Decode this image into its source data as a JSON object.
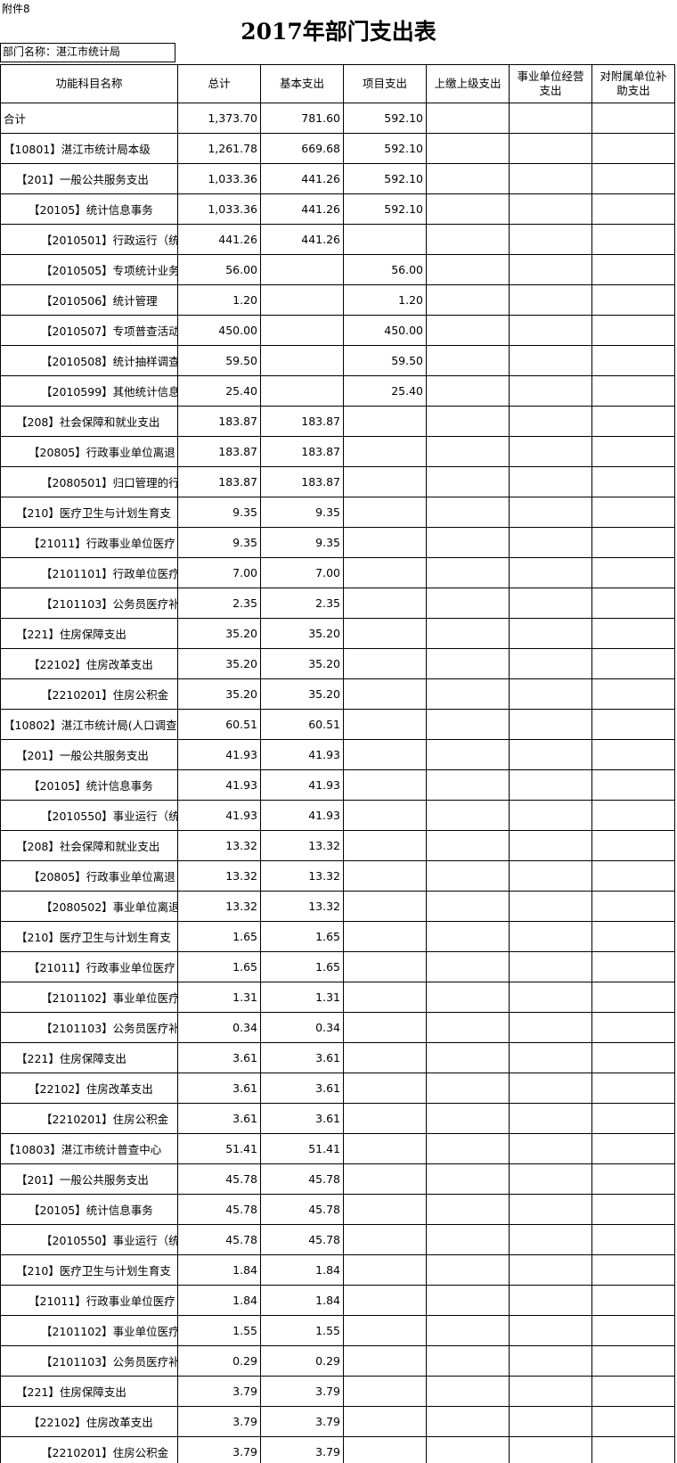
{
  "header": {
    "attachment": "附件8",
    "title": "2017年部门支出表",
    "department": "部门名称：湛江市统计局"
  },
  "columns": [
    "功能科目名称",
    "总计",
    "基本支出",
    "项目支出",
    "上缴上级支出",
    "事业单位经营支出",
    "对附属单位补助支出"
  ],
  "total": {
    "name": "合计",
    "total": "1,373.70",
    "basic": "781.60",
    "project": "592.10"
  },
  "units": [
    {
      "name": "【10801】湛江市统计局本级",
      "total": "1,261.78",
      "basic": "669.68",
      "project": "592.10",
      "rows": [
        {
          "name": "【201】一般公共服务支出",
          "total": "1,033.36",
          "basic": "441.26",
          "project": "592.10"
        },
        {
          "name": "【20105】统计信息事务",
          "total": "1,033.36",
          "basic": "441.26",
          "project": "592.10"
        },
        {
          "name": "【2010501】行政运行（统",
          "total": "441.26",
          "basic": "441.26",
          "project": null
        },
        {
          "name": "【2010505】专项统计业务",
          "total": "56.00",
          "basic": null,
          "project": "56.00"
        },
        {
          "name": "【2010506】统计管理",
          "total": "1.20",
          "basic": null,
          "project": "1.20"
        },
        {
          "name": "【2010507】专项普查活动",
          "total": "450.00",
          "basic": null,
          "project": "450.00"
        },
        {
          "name": "【2010508】统计抽样调查",
          "total": "59.50",
          "basic": null,
          "project": "59.50"
        },
        {
          "name": "【2010599】其他统计信息",
          "total": "25.40",
          "basic": null,
          "project": "25.40"
        },
        {
          "name": "【208】社会保障和就业支出",
          "total": "183.87",
          "basic": "183.87",
          "project": null
        },
        {
          "name": "【20805】行政事业单位离退",
          "total": "183.87",
          "basic": "183.87",
          "project": null
        },
        {
          "name": "【2080501】归口管理的行",
          "total": "183.87",
          "basic": "183.87",
          "project": null
        },
        {
          "name": "【210】医疗卫生与计划生育支",
          "total": "9.35",
          "basic": "9.35",
          "project": null
        },
        {
          "name": "【21011】行政事业单位医疗",
          "total": "9.35",
          "basic": "9.35",
          "project": null
        },
        {
          "name": "【2101101】行政单位医疗",
          "total": "7.00",
          "basic": "7.00",
          "project": null
        },
        {
          "name": "【2101103】公务员医疗补",
          "total": "2.35",
          "basic": "2.35",
          "project": null
        },
        {
          "name": "【221】住房保障支出",
          "total": "35.20",
          "basic": "35.20",
          "project": null
        },
        {
          "name": "【22102】住房改革支出",
          "total": "35.20",
          "basic": "35.20",
          "project": null
        },
        {
          "name": "【2210201】住房公积金",
          "total": "35.20",
          "basic": "35.20",
          "project": null
        }
      ]
    },
    {
      "name": "【10802】湛江市统计局(人口调查",
      "total": "60.51",
      "basic": "60.51",
      "project": null,
      "rows": [
        {
          "name": "【201】一般公共服务支出",
          "total": "41.93",
          "basic": "41.93",
          "project": null
        },
        {
          "name": "【20105】统计信息事务",
          "total": "41.93",
          "basic": "41.93",
          "project": null
        },
        {
          "name": "【2010550】事业运行（统",
          "total": "41.93",
          "basic": "41.93",
          "project": null
        },
        {
          "name": "【208】社会保障和就业支出",
          "total": "13.32",
          "basic": "13.32",
          "project": null
        },
        {
          "name": "【20805】行政事业单位离退",
          "total": "13.32",
          "basic": "13.32",
          "project": null
        },
        {
          "name": "【2080502】事业单位离退",
          "total": "13.32",
          "basic": "13.32",
          "project": null
        },
        {
          "name": "【210】医疗卫生与计划生育支",
          "total": "1.65",
          "basic": "1.65",
          "project": null
        },
        {
          "name": "【21011】行政事业单位医疗",
          "total": "1.65",
          "basic": "1.65",
          "project": null
        },
        {
          "name": "【2101102】事业单位医疗",
          "total": "1.31",
          "basic": "1.31",
          "project": null
        },
        {
          "name": "【2101103】公务员医疗补",
          "total": "0.34",
          "basic": "0.34",
          "project": null
        },
        {
          "name": "【221】住房保障支出",
          "total": "3.61",
          "basic": "3.61",
          "project": null
        },
        {
          "name": "【22102】住房改革支出",
          "total": "3.61",
          "basic": "3.61",
          "project": null
        },
        {
          "name": "【2210201】住房公积金",
          "total": "3.61",
          "basic": "3.61",
          "project": null
        }
      ]
    },
    {
      "name": "【10803】湛江市统计普查中心",
      "total": "51.41",
      "basic": "51.41",
      "project": null,
      "rows": [
        {
          "name": "【201】一般公共服务支出",
          "total": "45.78",
          "basic": "45.78",
          "project": null
        },
        {
          "name": "【20105】统计信息事务",
          "total": "45.78",
          "basic": "45.78",
          "project": null
        },
        {
          "name": "【2010550】事业运行（统",
          "total": "45.78",
          "basic": "45.78",
          "project": null
        },
        {
          "name": "【210】医疗卫生与计划生育支",
          "total": "1.84",
          "basic": "1.84",
          "project": null
        },
        {
          "name": "【21011】行政事业单位医疗",
          "total": "1.84",
          "basic": "1.84",
          "project": null
        },
        {
          "name": "【2101102】事业单位医疗",
          "total": "1.55",
          "basic": "1.55",
          "project": null
        },
        {
          "name": "【2101103】公务员医疗补",
          "total": "0.29",
          "basic": "0.29",
          "project": null
        },
        {
          "name": "【221】住房保障支出",
          "total": "3.79",
          "basic": "3.79",
          "project": null
        },
        {
          "name": "【22102】住房改革支出",
          "total": "3.79",
          "basic": "3.79",
          "project": null
        },
        {
          "name": "【2210201】住房公积金",
          "total": "3.79",
          "basic": "3.79",
          "project": null
        }
      ]
    }
  ]
}
